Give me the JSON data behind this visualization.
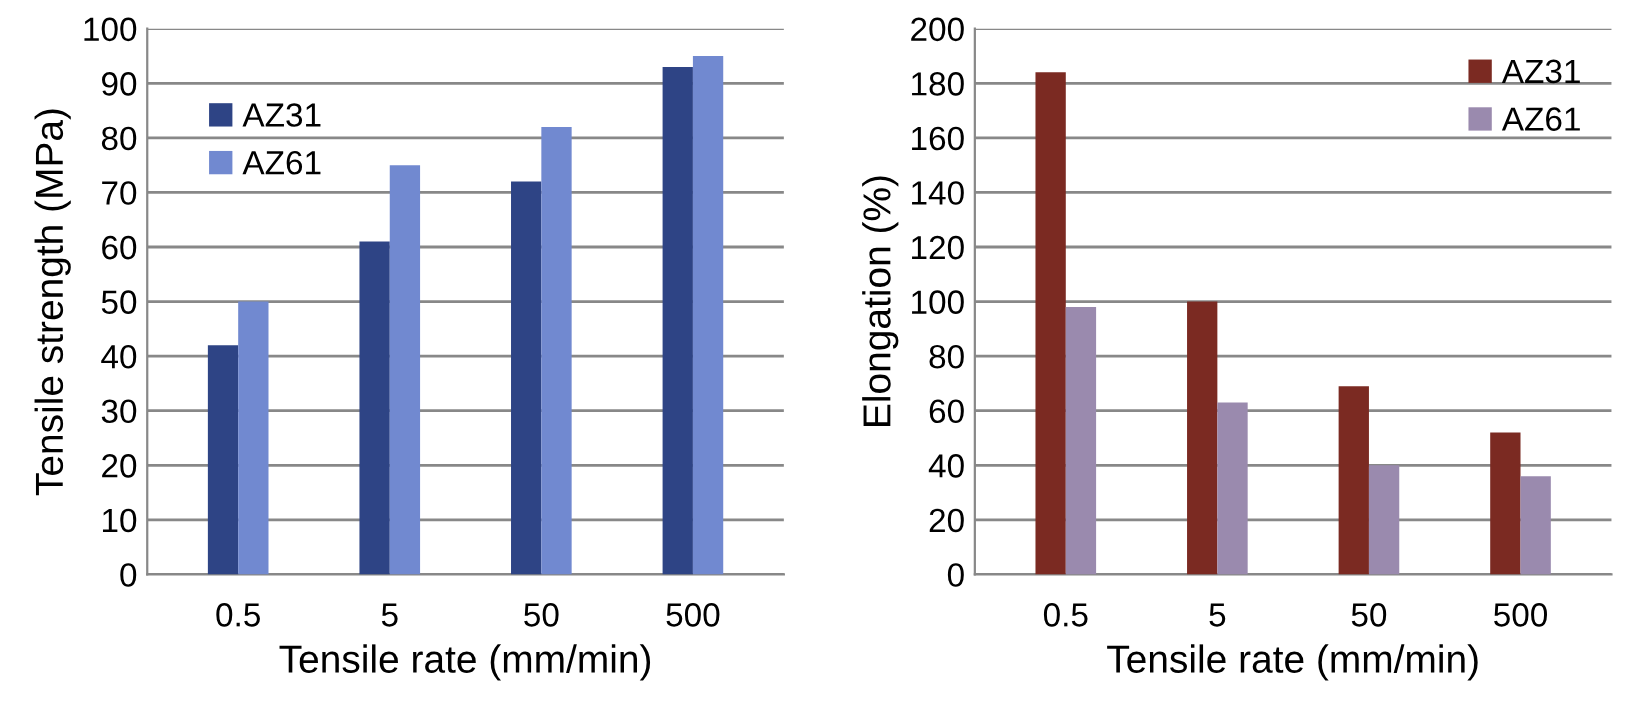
{
  "chart_data": [
    {
      "type": "bar",
      "xlabel": "Tensile rate (mm/min)",
      "ylabel": "Tensile strength (MPa)",
      "categories": [
        "0.5",
        "5",
        "50",
        "500"
      ],
      "series": [
        {
          "name": "AZ31",
          "color": "#2e4485",
          "values": [
            42,
            61,
            72,
            93
          ]
        },
        {
          "name": "AZ61",
          "color": "#7189d0",
          "values": [
            50,
            75,
            82,
            95
          ]
        }
      ],
      "ylim": [
        0,
        100
      ],
      "yticks": [
        0,
        10,
        20,
        30,
        40,
        50,
        60,
        70,
        80,
        90,
        100
      ],
      "grid": "y",
      "legend": "top left"
    },
    {
      "type": "bar",
      "xlabel": "Tensile rate (mm/min)",
      "ylabel": "Elongation (%)",
      "categories": [
        "0.5",
        "5",
        "50",
        "500"
      ],
      "series": [
        {
          "name": "AZ31",
          "color": "#7b2a22",
          "values": [
            184,
            100,
            69,
            52
          ]
        },
        {
          "name": "AZ61",
          "color": "#9a8aae",
          "values": [
            98,
            63,
            40,
            36
          ]
        }
      ],
      "ylim": [
        0,
        200
      ],
      "yticks": [
        0,
        20,
        40,
        60,
        80,
        100,
        120,
        140,
        160,
        180,
        200
      ],
      "grid": "y",
      "legend": "top right"
    }
  ]
}
